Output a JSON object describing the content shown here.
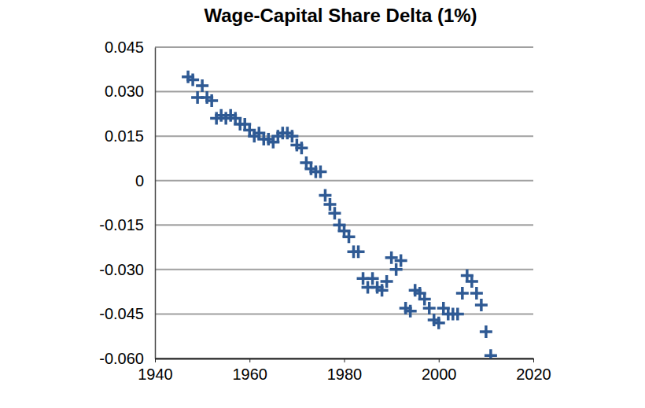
{
  "chart_data": {
    "type": "scatter",
    "title": "Wage-Capital Share Delta (1%)",
    "x": [
      1947,
      1948,
      1949,
      1950,
      1951,
      1952,
      1953,
      1954,
      1955,
      1956,
      1957,
      1958,
      1959,
      1960,
      1961,
      1962,
      1963,
      1964,
      1965,
      1966,
      1967,
      1968,
      1969,
      1970,
      1971,
      1972,
      1973,
      1974,
      1975,
      1976,
      1977,
      1978,
      1979,
      1980,
      1981,
      1982,
      1983,
      1984,
      1985,
      1986,
      1987,
      1988,
      1989,
      1990,
      1991,
      1992,
      1993,
      1994,
      1995,
      1996,
      1997,
      1998,
      1999,
      2000,
      2001,
      2002,
      2003,
      2004,
      2005,
      2006,
      2007,
      2008,
      2009,
      2010,
      2011
    ],
    "values": [
      0.035,
      0.034,
      0.028,
      0.032,
      0.028,
      0.027,
      0.021,
      0.022,
      0.021,
      0.022,
      0.021,
      0.019,
      0.019,
      0.017,
      0.015,
      0.016,
      0.014,
      0.014,
      0.013,
      0.015,
      0.016,
      0.016,
      0.015,
      0.012,
      0.011,
      0.006,
      0.004,
      0.003,
      0.003,
      -0.005,
      -0.008,
      -0.011,
      -0.015,
      -0.017,
      -0.019,
      -0.024,
      -0.024,
      -0.033,
      -0.036,
      -0.033,
      -0.036,
      -0.037,
      -0.034,
      -0.026,
      -0.03,
      -0.027,
      -0.043,
      -0.044,
      -0.037,
      -0.038,
      -0.04,
      -0.043,
      -0.047,
      -0.048,
      -0.043,
      -0.045,
      -0.045,
      -0.045,
      -0.038,
      -0.032,
      -0.034,
      -0.038,
      -0.042,
      -0.051,
      -0.059
    ],
    "color": "#2f5a94",
    "marker": "plus",
    "xlim": [
      1940,
      2020
    ],
    "xticks": [
      1940,
      1960,
      1980,
      2000,
      2020
    ],
    "ylim": [
      -0.06,
      0.045
    ],
    "yticks": [
      {
        "value": -0.06,
        "label": "-0.060"
      },
      -0.045,
      {
        "value": -0.03,
        "label": "-0.030"
      },
      -0.015,
      0,
      0.015,
      {
        "value": 0.03,
        "label": "0.030"
      },
      0.045
    ],
    "grid": true
  }
}
